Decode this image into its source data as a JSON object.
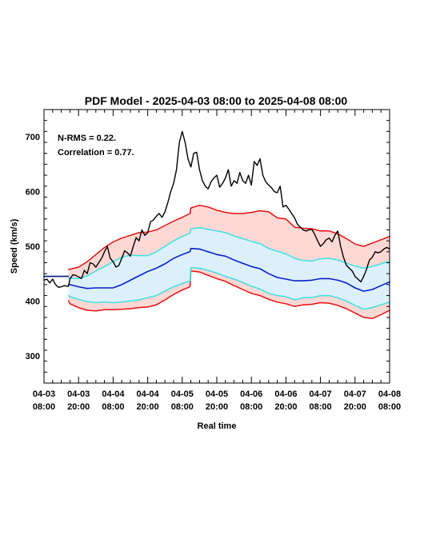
{
  "chart_data": {
    "type": "line",
    "title": "PDF Model - 2025-04-03 08:00 to 2025-04-08 08:00",
    "xlabel": "Real time",
    "ylabel": "Speed (km/s)",
    "xlim": [
      0,
      120
    ],
    "ylim": [
      250,
      750
    ],
    "x_unit": "hours from 2025-04-03 08:00",
    "grid": false,
    "y_ticks": [
      300,
      400,
      500,
      600,
      700
    ],
    "x_ticks": [
      {
        "x": 0,
        "date": "04-03",
        "time": "08:00"
      },
      {
        "x": 12,
        "date": "04-03",
        "time": "20:00"
      },
      {
        "x": 24,
        "date": "04-04",
        "time": "08:00"
      },
      {
        "x": 36,
        "date": "04-04",
        "time": "20:00"
      },
      {
        "x": 48,
        "date": "04-05",
        "time": "08:00"
      },
      {
        "x": 60,
        "date": "04-05",
        "time": "20:00"
      },
      {
        "x": 72,
        "date": "04-06",
        "time": "08:00"
      },
      {
        "x": 84,
        "date": "04-06",
        "time": "20:00"
      },
      {
        "x": 96,
        "date": "04-07",
        "time": "08:00"
      },
      {
        "x": 108,
        "date": "04-07",
        "time": "20:00"
      },
      {
        "x": 120,
        "date": "04-08",
        "time": "08:00"
      }
    ],
    "annotations": [
      "N-RMS = 0.22.",
      "Correlation = 0.77."
    ],
    "colors": {
      "observed": "#000000",
      "median": "#0a1fc8",
      "inner_band": "#3ee0e0",
      "outer_band": "#e61010",
      "outer_fill": "#fdd8d5",
      "inner_fill": "#dcf0fb",
      "persistence": "#001a8c"
    },
    "persistence": {
      "x": [
        0,
        8.5
      ],
      "y": [
        445,
        445
      ]
    },
    "band_x": [
      8.5,
      9,
      12,
      15,
      18,
      21,
      24,
      27,
      30,
      33,
      36,
      39,
      42,
      45,
      48,
      50.7,
      51,
      54,
      57,
      60,
      63,
      66,
      69,
      72,
      75,
      78,
      81,
      84,
      87,
      90,
      93,
      96,
      99,
      102,
      105,
      108,
      111,
      114,
      117,
      120
    ],
    "outer_upper": [
      458,
      458,
      462,
      472,
      485,
      498,
      508,
      515,
      520,
      525,
      526,
      530,
      538,
      546,
      553,
      560,
      570,
      575,
      572,
      566,
      562,
      560,
      560,
      562,
      565,
      563,
      552,
      550,
      535,
      533,
      532,
      528,
      528,
      523,
      514,
      504,
      500,
      506,
      512,
      518
    ],
    "inner_upper": [
      442,
      442,
      441,
      446,
      455,
      463,
      472,
      480,
      484,
      483,
      483,
      490,
      500,
      510,
      518,
      524,
      532,
      534,
      531,
      528,
      525,
      519,
      514,
      509,
      505,
      496,
      491,
      486,
      478,
      474,
      473,
      477,
      478,
      475,
      469,
      464,
      460,
      463,
      468,
      473
    ],
    "median": [
      430,
      430,
      426,
      423,
      424,
      424,
      424,
      430,
      438,
      446,
      454,
      460,
      468,
      478,
      485,
      490,
      496,
      495,
      490,
      485,
      482,
      475,
      469,
      463,
      459,
      450,
      443,
      440,
      437,
      437,
      438,
      441,
      441,
      438,
      433,
      424,
      418,
      421,
      428,
      435
    ],
    "inner_lower": [
      410,
      408,
      403,
      399,
      397,
      398,
      397,
      398,
      400,
      402,
      406,
      410,
      418,
      426,
      432,
      436,
      461,
      460,
      456,
      451,
      445,
      440,
      434,
      427,
      422,
      414,
      410,
      408,
      402,
      406,
      406,
      410,
      410,
      406,
      400,
      392,
      385,
      388,
      393,
      398
    ],
    "outer_lower": [
      400,
      395,
      388,
      383,
      382,
      384,
      384,
      385,
      386,
      388,
      389,
      393,
      402,
      412,
      420,
      426,
      455,
      453,
      447,
      441,
      436,
      428,
      421,
      414,
      410,
      403,
      398,
      395,
      390,
      393,
      394,
      397,
      396,
      392,
      386,
      378,
      370,
      368,
      375,
      383
    ],
    "observed": {
      "x": [
        0,
        1,
        2,
        3,
        4,
        5,
        6,
        7,
        8,
        8.5,
        9,
        10,
        11,
        12,
        13,
        14,
        15,
        16,
        17,
        18,
        19,
        20,
        21,
        22,
        23,
        24,
        25,
        26,
        27,
        28,
        29,
        30,
        31,
        32,
        33,
        34,
        35,
        36,
        37,
        38,
        39,
        40,
        41,
        42,
        43,
        44,
        45,
        46,
        47,
        48,
        49,
        50,
        51,
        52,
        53,
        54,
        55,
        56,
        57,
        58,
        59,
        60,
        61,
        62,
        63,
        64,
        65,
        66,
        67,
        68,
        69,
        70,
        71,
        72,
        73,
        74,
        75,
        76,
        77,
        78,
        79,
        80,
        81,
        82,
        83,
        84,
        85,
        86,
        87,
        88,
        89,
        90,
        91,
        92,
        93,
        94,
        95,
        96,
        97,
        98,
        99,
        100,
        101,
        102,
        103,
        104,
        105,
        106,
        107,
        108,
        109,
        110,
        111,
        112,
        113,
        114,
        115,
        116,
        117,
        118,
        119,
        120
      ],
      "y": [
        438,
        440,
        433,
        440,
        430,
        425,
        426,
        428,
        427,
        427,
        440,
        448,
        447,
        444,
        441,
        456,
        450,
        470,
        468,
        462,
        470,
        478,
        490,
        500,
        478,
        472,
        462,
        465,
        478,
        492,
        488,
        482,
        500,
        516,
        510,
        530,
        520,
        525,
        545,
        548,
        555,
        560,
        553,
        563,
        580,
        600,
        615,
        640,
        690,
        710,
        690,
        660,
        645,
        670,
        672,
        640,
        620,
        610,
        605,
        618,
        625,
        630,
        608,
        615,
        625,
        640,
        610,
        620,
        615,
        635,
        620,
        615,
        630,
        612,
        655,
        648,
        660,
        630,
        618,
        612,
        607,
        600,
        598,
        610,
        572,
        575,
        568,
        560,
        552,
        540,
        535,
        530,
        528,
        530,
        531,
        522,
        510,
        500,
        505,
        512,
        515,
        508,
        520,
        528,
        500,
        480,
        465,
        460,
        455,
        445,
        440,
        435,
        445,
        458,
        475,
        480,
        490,
        488,
        490,
        495,
        498,
        495
      ]
    }
  }
}
